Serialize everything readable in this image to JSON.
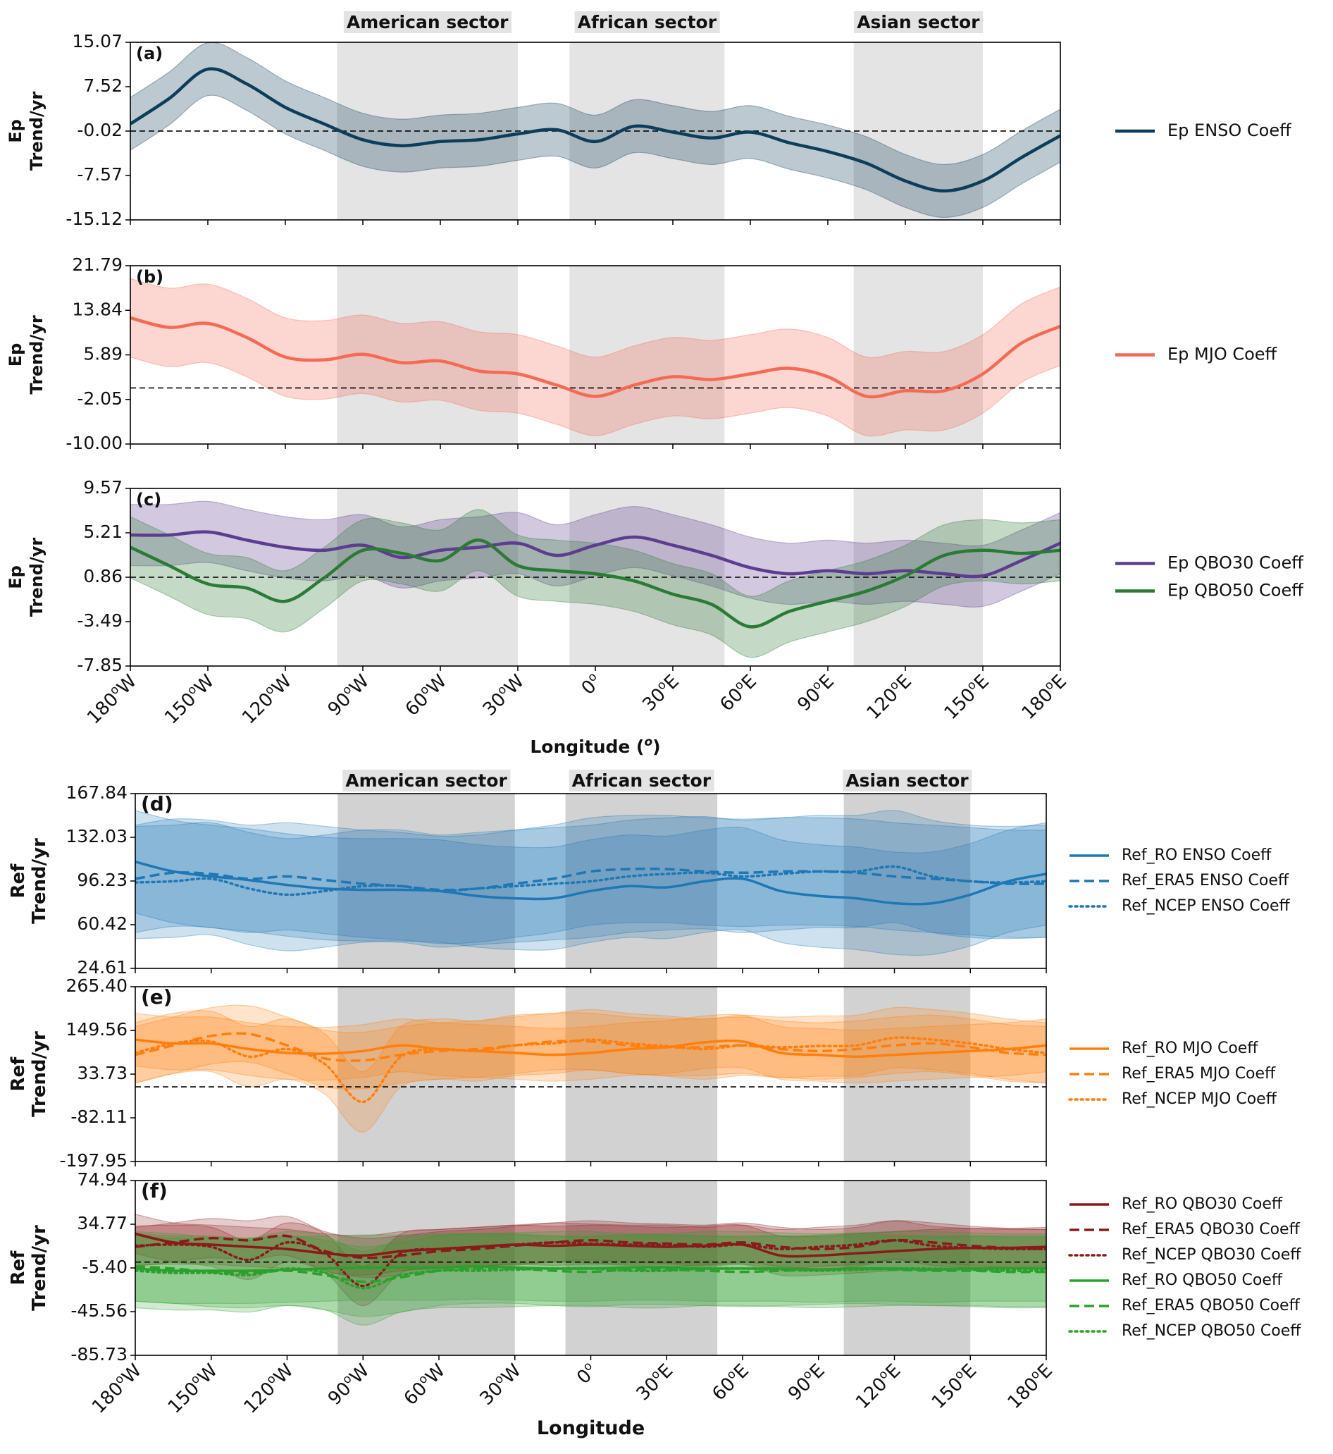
{
  "chart_data": {
    "type": "line",
    "x": [
      -180,
      -165,
      -150,
      -135,
      -120,
      -105,
      -90,
      -75,
      -60,
      -45,
      -30,
      -15,
      0,
      15,
      30,
      45,
      60,
      75,
      90,
      105,
      120,
      135,
      150,
      165,
      180
    ],
    "sectors": [
      {
        "label": "American sector",
        "x0": -100,
        "x1": -30
      },
      {
        "label": "African sector",
        "x0": -10,
        "x1": 50
      },
      {
        "label": "Asian sector",
        "x0": 100,
        "x1": 150
      }
    ],
    "xtick_labels": [
      "180°W",
      "150°W",
      "120°W",
      "90°W",
      "60°W",
      "30°W",
      "0°",
      "30°E",
      "60°E",
      "90°E",
      "120°E",
      "150°E",
      "180°E"
    ],
    "groups": [
      {
        "xlabel": "Longitude (°)",
        "panels": [
          {
            "label": "(a)",
            "ylabel": "Ep Trend/yr",
            "ylim": [
              -15.12,
              15.07
            ],
            "yticks": [
              "15.07",
              "7.52",
              "-0.02",
              "-7.57",
              "-15.12"
            ],
            "zero_line": -0.02,
            "series": [
              {
                "name": "Ep ENSO Coeff",
                "color": "#0e3d5a",
                "style": "solid",
                "band": 4.5,
                "values": [
                  1.2,
                  5.5,
                  10.5,
                  8.0,
                  4.0,
                  1.2,
                  -1.5,
                  -2.5,
                  -1.8,
                  -1.5,
                  -0.5,
                  0.2,
                  -1.8,
                  0.8,
                  -0.2,
                  -1.2,
                  -0.2,
                  -2.0,
                  -3.5,
                  -5.5,
                  -8.5,
                  -10.2,
                  -8.5,
                  -4.5,
                  -0.8
                ]
              }
            ]
          },
          {
            "label": "(b)",
            "ylabel": "Ep Trend/yr",
            "ylim": [
              -10.0,
              21.79
            ],
            "yticks": [
              "21.79",
              "13.84",
              "5.89",
              "-2.05",
              "-10.00"
            ],
            "zero_line": 0,
            "series": [
              {
                "name": "Ep MJO Coeff",
                "color": "#f46a55",
                "style": "solid",
                "band": 7.0,
                "values": [
                  12.5,
                  10.8,
                  11.5,
                  9.0,
                  5.5,
                  5.0,
                  6.0,
                  4.5,
                  4.8,
                  3.0,
                  2.5,
                  0.5,
                  -1.5,
                  0.5,
                  2.0,
                  1.5,
                  2.5,
                  3.5,
                  2.0,
                  -1.5,
                  -0.5,
                  -0.5,
                  2.5,
                  8.0,
                  11.0
                ]
              }
            ]
          },
          {
            "label": "(c)",
            "ylabel": "Ep Trend/yr",
            "ylim": [
              -7.85,
              9.57
            ],
            "yticks": [
              "9.57",
              "5.21",
              "0.86",
              "-3.49",
              "-7.85"
            ],
            "zero_line": 0.86,
            "series": [
              {
                "name": "Ep QBO30 Coeff",
                "color": "#5c3d8e",
                "style": "solid",
                "band": 3.0,
                "values": [
                  5.0,
                  5.0,
                  5.3,
                  4.5,
                  3.8,
                  3.5,
                  4.0,
                  2.8,
                  3.5,
                  3.8,
                  4.2,
                  3.0,
                  4.0,
                  4.8,
                  4.0,
                  3.0,
                  1.8,
                  1.2,
                  1.5,
                  1.2,
                  1.5,
                  1.2,
                  1.0,
                  2.5,
                  4.2
                ]
              },
              {
                "name": "Ep QBO50 Coeff",
                "color": "#2b7a35",
                "style": "solid",
                "band": 3.0,
                "values": [
                  3.8,
                  2.0,
                  0.2,
                  -0.2,
                  -1.5,
                  0.8,
                  3.5,
                  3.2,
                  2.5,
                  4.5,
                  2.0,
                  1.5,
                  1.2,
                  0.5,
                  -0.8,
                  -1.8,
                  -4.0,
                  -2.5,
                  -1.5,
                  -0.5,
                  1.0,
                  3.0,
                  3.5,
                  3.2,
                  3.5
                ]
              }
            ]
          }
        ]
      },
      {
        "xlabel": "Longitude",
        "panels": [
          {
            "label": "(d)",
            "ylabel": "Ref Trend/yr",
            "ylim": [
              24.61,
              167.84
            ],
            "yticks": [
              "167.84",
              "132.03",
              "96.23",
              "60.42",
              "24.61"
            ],
            "zero_line": null,
            "series": [
              {
                "name": "Ref_RO ENSO Coeff",
                "color": "#1f77b4",
                "style": "solid",
                "band": 42,
                "values": [
                  112,
                  104,
                  100,
                  97,
                  93,
                  90,
                  89,
                  89,
                  88,
                  84,
                  82,
                  82,
                  88,
                  92,
                  91,
                  96,
                  98,
                  88,
                  84,
                  82,
                  78,
                  78,
                  85,
                  96,
                  102
                ]
              },
              {
                "name": "Ref_ERA5 ENSO Coeff",
                "color": "#1f77b4",
                "style": "dashed",
                "band": 44,
                "values": [
                  98,
                  103,
                  102,
                  98,
                  100,
                  97,
                  94,
                  92,
                  89,
                  90,
                  94,
                  98,
                  104,
                  106,
                  106,
                  104,
                  103,
                  104,
                  104,
                  103,
                  100,
                  98,
                  96,
                  94,
                  94
                ]
              },
              {
                "name": "Ref_NCEP ENSO Coeff",
                "color": "#1f77b4",
                "style": "dotted",
                "band": 46,
                "values": [
                  95,
                  96,
                  98,
                  90,
                  85,
                  88,
                  92,
                  92,
                  88,
                  90,
                  92,
                  94,
                  96,
                  100,
                  102,
                  103,
                  100,
                  102,
                  104,
                  104,
                  108,
                  100,
                  96,
                  95,
                  96
                ]
              }
            ]
          },
          {
            "label": "(e)",
            "ylabel": "Ref Trend/yr",
            "ylim": [
              -197.95,
              265.4
            ],
            "yticks": [
              "265.40",
              "149.56",
              "33.73",
              "-82.11",
              "-197.95"
            ],
            "zero_line": 0,
            "series": [
              {
                "name": "Ref_RO MJO Coeff",
                "color": "#ff7f0e",
                "style": "solid",
                "band": 70,
                "values": [
                  125,
                  115,
                  115,
                  100,
                  90,
                  88,
                  95,
                  110,
                  100,
                  95,
                  90,
                  85,
                  90,
                  100,
                  105,
                  118,
                  120,
                  90,
                  85,
                  80,
                  85,
                  90,
                  95,
                  100,
                  110
                ]
              },
              {
                "name": "Ref_ERA5 MJO Coeff",
                "color": "#ff7f0e",
                "style": "dashed",
                "band": 75,
                "values": [
                  85,
                  110,
                  135,
                  140,
                  110,
                  75,
                  70,
                  85,
                  95,
                  100,
                  110,
                  120,
                  120,
                  110,
                  105,
                  105,
                  110,
                  100,
                  95,
                  100,
                  110,
                  115,
                  105,
                  90,
                  85
                ]
              },
              {
                "name": "Ref_NCEP MJO Coeff",
                "color": "#ff7f0e",
                "style": "dotted",
                "band": 80,
                "values": [
                  90,
                  115,
                  120,
                  80,
                  100,
                  60,
                  -40,
                  80,
                  100,
                  95,
                  110,
                  115,
                  125,
                  115,
                  108,
                  100,
                  110,
                  105,
                  108,
                  110,
                  130,
                  125,
                  115,
                  100,
                  90
                ]
              }
            ]
          },
          {
            "label": "(f)",
            "ylabel": "Ref Trend/yr",
            "ylim": [
              -85.73,
              74.94
            ],
            "yticks": [
              "74.94",
              "34.77",
              "-5.40",
              "-45.56",
              "-85.73"
            ],
            "zero_line": 0,
            "series": [
              {
                "name": "Ref_RO QBO30 Coeff",
                "color": "#8b1a1a",
                "style": "solid",
                "band": 18,
                "values": [
                  26,
                  18,
                  16,
                  14,
                  12,
                  8,
                  6,
                  10,
                  12,
                  14,
                  16,
                  15,
                  16,
                  15,
                  14,
                  15,
                  16,
                  6,
                  6,
                  8,
                  10,
                  12,
                  13,
                  13,
                  14
                ]
              },
              {
                "name": "Ref_ERA5 QBO30 Coeff",
                "color": "#8b1a1a",
                "style": "dashed",
                "band": 18,
                "values": [
                  14,
                  18,
                  22,
                  20,
                  24,
                  10,
                  4,
                  6,
                  10,
                  12,
                  15,
                  18,
                  20,
                  18,
                  17,
                  16,
                  18,
                  14,
                  12,
                  14,
                  20,
                  18,
                  15,
                  13,
                  12
                ]
              },
              {
                "name": "Ref_NCEP QBO30 Coeff",
                "color": "#8b1a1a",
                "style": "dotted",
                "band": 18,
                "values": [
                  15,
                  16,
                  14,
                  2,
                  18,
                  8,
                  -22,
                  8,
                  12,
                  14,
                  16,
                  18,
                  17,
                  16,
                  16,
                  14,
                  16,
                  12,
                  14,
                  16,
                  20,
                  15,
                  13,
                  12,
                  12
                ]
              },
              {
                "name": "Ref_RO QBO50 Coeff",
                "color": "#2ca02c",
                "style": "solid",
                "band": 30,
                "values": [
                  -6,
                  -8,
                  -8,
                  -8,
                  -7,
                  -6,
                  -5,
                  -5,
                  -5,
                  -4,
                  -5,
                  -6,
                  -6,
                  -5,
                  -5,
                  -6,
                  -6,
                  -6,
                  -7,
                  -6,
                  -6,
                  -7,
                  -6,
                  -6,
                  -6
                ]
              },
              {
                "name": "Ref_ERA5 QBO50 Coeff",
                "color": "#2ca02c",
                "style": "dashed",
                "band": 32,
                "values": [
                  -4,
                  -6,
                  -9,
                  -10,
                  -8,
                  -12,
                  -18,
                  -14,
                  -8,
                  -6,
                  -6,
                  -8,
                  -9,
                  -7,
                  -7,
                  -8,
                  -9,
                  -8,
                  -7,
                  -6,
                  -7,
                  -8,
                  -8,
                  -9,
                  -9
                ]
              },
              {
                "name": "Ref_NCEP QBO50 Coeff",
                "color": "#2ca02c",
                "style": "dotted",
                "band": 34,
                "values": [
                  -8,
                  -10,
                  -10,
                  -12,
                  -6,
                  -10,
                  -24,
                  -12,
                  -8,
                  -8,
                  -7,
                  -6,
                  -6,
                  -8,
                  -8,
                  -6,
                  -6,
                  -7,
                  -8,
                  -7,
                  -6,
                  -6,
                  -7,
                  -8,
                  -8
                ]
              }
            ]
          }
        ]
      }
    ]
  }
}
